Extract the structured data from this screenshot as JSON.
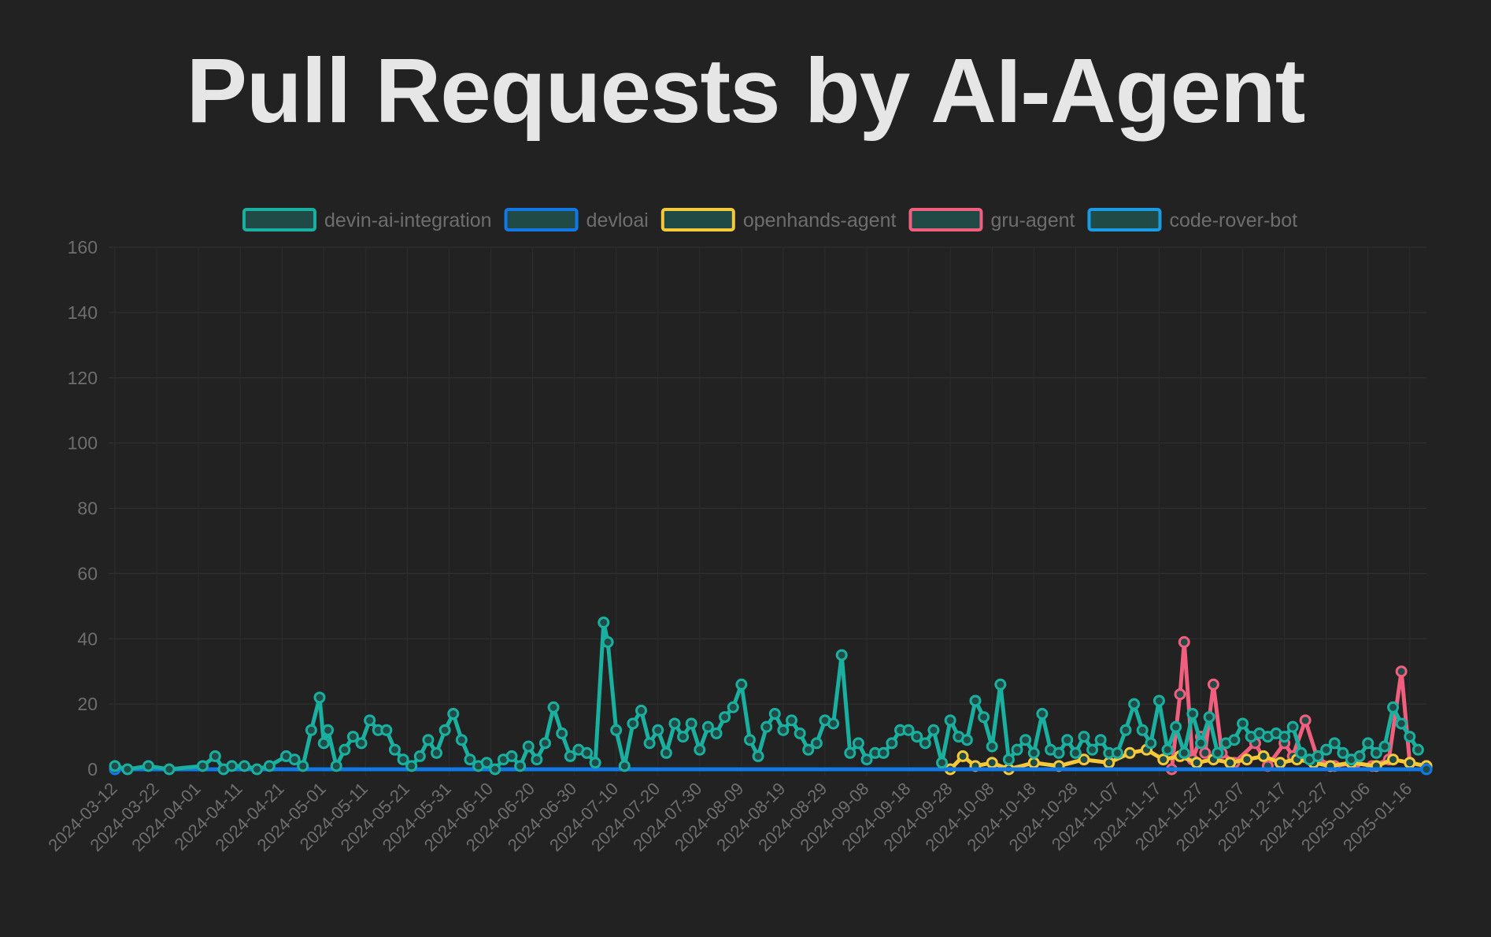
{
  "chart_data": {
    "type": "line",
    "title": "Pull Requests by AI-Agent",
    "xlabel": "",
    "ylabel": "",
    "x_start": "2024-03-12",
    "x_end": "2025-01-20",
    "x_tick_labels": [
      "2024-03-12",
      "2024-03-22",
      "2024-04-01",
      "2024-04-11",
      "2024-04-21",
      "2024-05-01",
      "2024-05-11",
      "2024-05-21",
      "2024-05-31",
      "2024-06-10",
      "2024-06-20",
      "2024-06-30",
      "2024-07-10",
      "2024-07-20",
      "2024-07-30",
      "2024-08-09",
      "2024-08-19",
      "2024-08-29",
      "2024-09-08",
      "2024-09-18",
      "2024-09-28",
      "2024-10-08",
      "2024-10-18",
      "2024-10-28",
      "2024-11-07",
      "2024-11-17",
      "2024-11-27",
      "2024-12-07",
      "2024-12-17",
      "2024-12-27",
      "2025-01-06",
      "2025-01-16"
    ],
    "ylim": [
      0,
      160
    ],
    "y_ticks": [
      0,
      20,
      40,
      60,
      80,
      100,
      120,
      140,
      160
    ],
    "grid": true,
    "legend_position": "top-center",
    "series": [
      {
        "name": "devin-ai-integration",
        "color": "#1ab0a0",
        "points": [
          [
            "2024-03-12",
            1
          ],
          [
            "2024-03-15",
            0
          ],
          [
            "2024-03-20",
            1
          ],
          [
            "2024-03-25",
            0
          ],
          [
            "2024-04-02",
            1
          ],
          [
            "2024-04-05",
            4
          ],
          [
            "2024-04-07",
            0
          ],
          [
            "2024-04-09",
            1
          ],
          [
            "2024-04-12",
            1
          ],
          [
            "2024-04-15",
            0
          ],
          [
            "2024-04-18",
            1
          ],
          [
            "2024-04-22",
            4
          ],
          [
            "2024-04-24",
            3
          ],
          [
            "2024-04-26",
            1
          ],
          [
            "2024-04-28",
            12
          ],
          [
            "2024-04-30",
            22
          ],
          [
            "2024-05-01",
            8
          ],
          [
            "2024-05-02",
            12
          ],
          [
            "2024-05-04",
            1
          ],
          [
            "2024-05-06",
            6
          ],
          [
            "2024-05-08",
            10
          ],
          [
            "2024-05-10",
            8
          ],
          [
            "2024-05-12",
            15
          ],
          [
            "2024-05-14",
            12
          ],
          [
            "2024-05-16",
            12
          ],
          [
            "2024-05-18",
            6
          ],
          [
            "2024-05-20",
            3
          ],
          [
            "2024-05-22",
            1
          ],
          [
            "2024-05-24",
            4
          ],
          [
            "2024-05-26",
            9
          ],
          [
            "2024-05-28",
            5
          ],
          [
            "2024-05-30",
            12
          ],
          [
            "2024-06-01",
            17
          ],
          [
            "2024-06-03",
            9
          ],
          [
            "2024-06-05",
            3
          ],
          [
            "2024-06-07",
            1
          ],
          [
            "2024-06-09",
            2
          ],
          [
            "2024-06-11",
            0
          ],
          [
            "2024-06-13",
            3
          ],
          [
            "2024-06-15",
            4
          ],
          [
            "2024-06-17",
            1
          ],
          [
            "2024-06-19",
            7
          ],
          [
            "2024-06-21",
            3
          ],
          [
            "2024-06-23",
            8
          ],
          [
            "2024-06-25",
            19
          ],
          [
            "2024-06-27",
            11
          ],
          [
            "2024-06-29",
            4
          ],
          [
            "2024-07-01",
            6
          ],
          [
            "2024-07-03",
            5
          ],
          [
            "2024-07-05",
            2
          ],
          [
            "2024-07-07",
            45
          ],
          [
            "2024-07-08",
            39
          ],
          [
            "2024-07-10",
            12
          ],
          [
            "2024-07-12",
            1
          ],
          [
            "2024-07-14",
            14
          ],
          [
            "2024-07-16",
            18
          ],
          [
            "2024-07-18",
            8
          ],
          [
            "2024-07-20",
            12
          ],
          [
            "2024-07-22",
            5
          ],
          [
            "2024-07-24",
            14
          ],
          [
            "2024-07-26",
            10
          ],
          [
            "2024-07-28",
            14
          ],
          [
            "2024-07-30",
            6
          ],
          [
            "2024-08-01",
            13
          ],
          [
            "2024-08-03",
            11
          ],
          [
            "2024-08-05",
            16
          ],
          [
            "2024-08-07",
            19
          ],
          [
            "2024-08-09",
            26
          ],
          [
            "2024-08-11",
            9
          ],
          [
            "2024-08-13",
            4
          ],
          [
            "2024-08-15",
            13
          ],
          [
            "2024-08-17",
            17
          ],
          [
            "2024-08-19",
            12
          ],
          [
            "2024-08-21",
            15
          ],
          [
            "2024-08-23",
            11
          ],
          [
            "2024-08-25",
            6
          ],
          [
            "2024-08-27",
            8
          ],
          [
            "2024-08-29",
            15
          ],
          [
            "2024-08-31",
            14
          ],
          [
            "2024-09-02",
            35
          ],
          [
            "2024-09-04",
            5
          ],
          [
            "2024-09-06",
            8
          ],
          [
            "2024-09-08",
            3
          ],
          [
            "2024-09-10",
            5
          ],
          [
            "2024-09-12",
            5
          ],
          [
            "2024-09-14",
            8
          ],
          [
            "2024-09-16",
            12
          ],
          [
            "2024-09-18",
            12
          ],
          [
            "2024-09-20",
            10
          ],
          [
            "2024-09-22",
            8
          ],
          [
            "2024-09-24",
            12
          ],
          [
            "2024-09-26",
            2
          ],
          [
            "2024-09-28",
            15
          ],
          [
            "2024-09-30",
            10
          ],
          [
            "2024-10-02",
            9
          ],
          [
            "2024-10-04",
            21
          ],
          [
            "2024-10-06",
            16
          ],
          [
            "2024-10-08",
            7
          ],
          [
            "2024-10-10",
            26
          ],
          [
            "2024-10-12",
            3
          ],
          [
            "2024-10-14",
            6
          ],
          [
            "2024-10-16",
            9
          ],
          [
            "2024-10-18",
            5
          ],
          [
            "2024-10-20",
            17
          ],
          [
            "2024-10-22",
            6
          ],
          [
            "2024-10-24",
            5
          ],
          [
            "2024-10-26",
            9
          ],
          [
            "2024-10-28",
            5
          ],
          [
            "2024-10-30",
            10
          ],
          [
            "2024-11-01",
            6
          ],
          [
            "2024-11-03",
            9
          ],
          [
            "2024-11-05",
            5
          ],
          [
            "2024-11-07",
            5
          ],
          [
            "2024-11-09",
            12
          ],
          [
            "2024-11-11",
            20
          ],
          [
            "2024-11-13",
            12
          ],
          [
            "2024-11-15",
            8
          ],
          [
            "2024-11-17",
            21
          ],
          [
            "2024-11-19",
            6
          ],
          [
            "2024-11-21",
            13
          ],
          [
            "2024-11-23",
            5
          ],
          [
            "2024-11-25",
            17
          ],
          [
            "2024-11-27",
            8
          ],
          [
            "2024-11-29",
            16
          ],
          [
            "2024-12-01",
            5
          ],
          [
            "2024-12-03",
            8
          ],
          [
            "2024-12-05",
            9
          ],
          [
            "2024-12-07",
            14
          ],
          [
            "2024-12-09",
            10
          ],
          [
            "2024-12-11",
            11
          ],
          [
            "2024-12-13",
            10
          ],
          [
            "2024-12-15",
            11
          ],
          [
            "2024-12-17",
            10
          ],
          [
            "2024-12-19",
            13
          ],
          [
            "2024-12-21",
            5
          ],
          [
            "2024-12-23",
            3
          ],
          [
            "2024-12-25",
            4
          ],
          [
            "2024-12-27",
            6
          ],
          [
            "2024-12-29",
            8
          ],
          [
            "2024-12-31",
            5
          ],
          [
            "2025-01-02",
            3
          ],
          [
            "2025-01-04",
            4
          ],
          [
            "2025-01-06",
            8
          ],
          [
            "2025-01-08",
            5
          ],
          [
            "2025-01-10",
            7
          ],
          [
            "2025-01-12",
            19
          ],
          [
            "2025-01-14",
            14
          ],
          [
            "2025-01-16",
            10
          ],
          [
            "2025-01-18",
            6
          ]
        ]
      },
      {
        "name": "devloai",
        "color": "#1178e6",
        "points": [
          [
            "2024-03-12",
            0
          ],
          [
            "2025-01-20",
            0
          ]
        ]
      },
      {
        "name": "openhands-agent",
        "color": "#f5c93a",
        "points": [
          [
            "2024-09-28",
            0
          ],
          [
            "2024-10-01",
            4
          ],
          [
            "2024-10-04",
            1
          ],
          [
            "2024-10-08",
            2
          ],
          [
            "2024-10-12",
            0
          ],
          [
            "2024-10-18",
            2
          ],
          [
            "2024-10-24",
            1
          ],
          [
            "2024-10-30",
            3
          ],
          [
            "2024-11-05",
            2
          ],
          [
            "2024-11-10",
            5
          ],
          [
            "2024-11-14",
            6
          ],
          [
            "2024-11-18",
            3
          ],
          [
            "2024-11-22",
            4
          ],
          [
            "2024-11-26",
            2
          ],
          [
            "2024-11-30",
            3
          ],
          [
            "2024-12-04",
            2
          ],
          [
            "2024-12-08",
            3
          ],
          [
            "2024-12-12",
            4
          ],
          [
            "2024-12-16",
            2
          ],
          [
            "2024-12-20",
            3
          ],
          [
            "2024-12-24",
            2
          ],
          [
            "2024-12-28",
            1
          ],
          [
            "2025-01-02",
            2
          ],
          [
            "2025-01-08",
            1
          ],
          [
            "2025-01-12",
            3
          ],
          [
            "2025-01-16",
            2
          ],
          [
            "2025-01-20",
            1
          ]
        ]
      },
      {
        "name": "gru-agent",
        "color": "#f0607e",
        "points": [
          [
            "2024-11-20",
            0
          ],
          [
            "2024-11-22",
            23
          ],
          [
            "2024-11-23",
            39
          ],
          [
            "2024-11-25",
            3
          ],
          [
            "2024-11-27",
            10
          ],
          [
            "2024-11-28",
            5
          ],
          [
            "2024-11-30",
            26
          ],
          [
            "2024-12-02",
            5
          ],
          [
            "2024-12-05",
            2
          ],
          [
            "2024-12-10",
            8
          ],
          [
            "2024-12-13",
            1
          ],
          [
            "2024-12-17",
            8
          ],
          [
            "2024-12-19",
            4
          ],
          [
            "2024-12-22",
            15
          ],
          [
            "2024-12-25",
            3
          ],
          [
            "2024-12-29",
            1
          ],
          [
            "2025-01-03",
            2
          ],
          [
            "2025-01-07",
            1
          ],
          [
            "2025-01-11",
            3
          ],
          [
            "2025-01-14",
            30
          ],
          [
            "2025-01-16",
            2
          ],
          [
            "2025-01-20",
            1
          ]
        ]
      },
      {
        "name": "code-rover-bot",
        "color": "#1a9be6",
        "points": [
          [
            "2024-03-12",
            0
          ],
          [
            "2025-01-20",
            0
          ]
        ]
      }
    ]
  }
}
